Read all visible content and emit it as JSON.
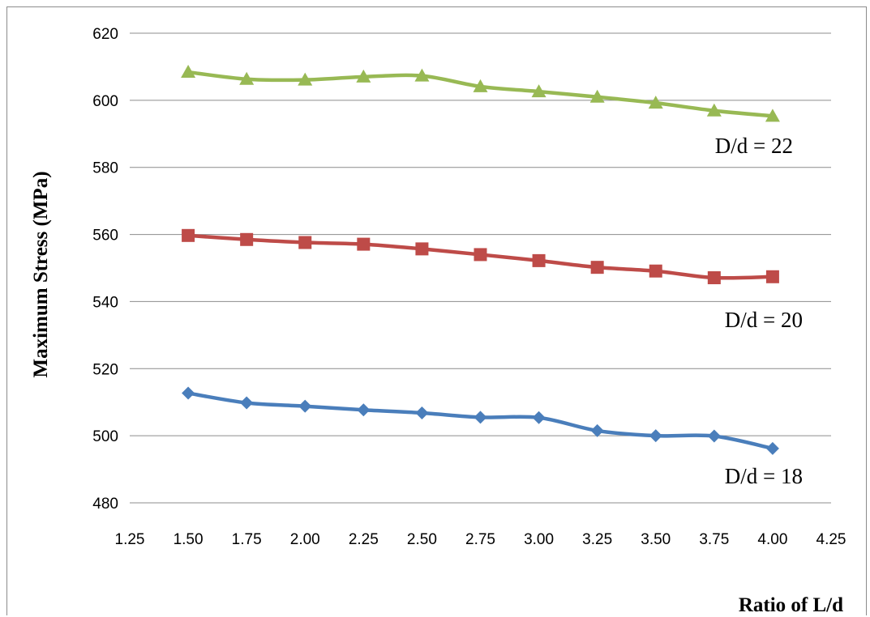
{
  "chart_data": {
    "type": "line",
    "xlabel": "Ratio of L/d",
    "ylabel": "Maximum Stress (MPa)",
    "xlim": [
      1.25,
      4.25
    ],
    "ylim": [
      480,
      620
    ],
    "x_ticks": [
      "1.25",
      "1.50",
      "1.75",
      "2.00",
      "2.25",
      "2.50",
      "2.75",
      "3.00",
      "3.25",
      "3.50",
      "3.75",
      "4.00",
      "4.25"
    ],
    "y_ticks": [
      "480",
      "500",
      "520",
      "540",
      "560",
      "580",
      "600",
      "620"
    ],
    "grid": "horizontal",
    "x": [
      1.5,
      1.75,
      2.0,
      2.25,
      2.5,
      2.75,
      3.0,
      3.25,
      3.5,
      3.75,
      4.0
    ],
    "series": [
      {
        "label": "D/d = 18",
        "color": "#4a7ebb",
        "marker": "diamond",
        "values": [
          512.7,
          509.8,
          508.8,
          507.7,
          506.8,
          505.5,
          505.4,
          501.5,
          500.0,
          499.9,
          496.2
        ]
      },
      {
        "label": "D/d = 20",
        "color": "#be4b48",
        "marker": "square",
        "values": [
          559.7,
          558.5,
          557.6,
          557.1,
          555.7,
          554.0,
          552.2,
          550.2,
          549.1,
          547.1,
          547.4
        ]
      },
      {
        "label": "D/d = 22",
        "color": "#98b954",
        "marker": "triangle",
        "values": [
          608.4,
          606.3,
          606.1,
          607.0,
          607.3,
          604.1,
          602.6,
          601.0,
          599.2,
          596.9,
          595.3
        ]
      }
    ]
  }
}
